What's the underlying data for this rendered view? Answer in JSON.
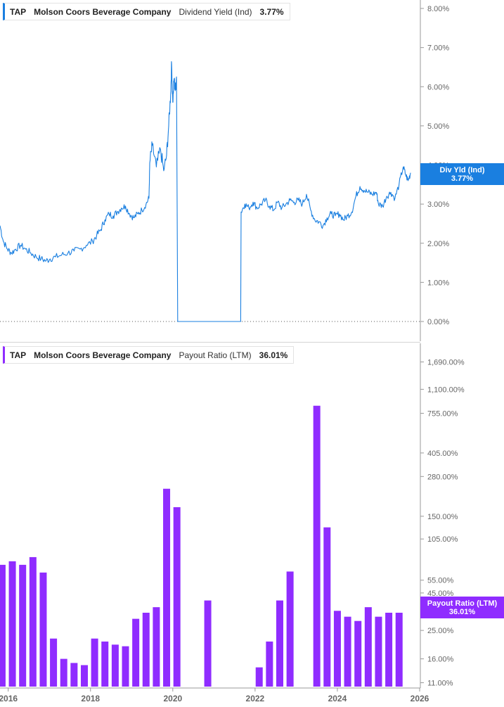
{
  "colors": {
    "yield": "#1a7fe0",
    "payout": "#8f2cff",
    "axis": "#999999",
    "label": "#666666"
  },
  "top_legend": {
    "ticker": "TAP",
    "company": "Molson Coors Beverage Company",
    "metric": "Dividend Yield (Ind)",
    "value": "3.77%"
  },
  "bottom_legend": {
    "ticker": "TAP",
    "company": "Molson Coors Beverage Company",
    "metric": "Payout Ratio (LTM)",
    "value": "36.01%"
  },
  "top_tag": {
    "label": "Div Yld (Ind)",
    "value": "3.77%"
  },
  "bottom_tag": {
    "label": "Payout Ratio (LTM)",
    "value": "36.01%"
  },
  "chart_data": [
    {
      "type": "line",
      "series": [
        {
          "name": "Dividend Yield (Ind)",
          "unit": "%",
          "points": [
            [
              2015.8,
              2.45
            ],
            [
              2015.88,
              2.05
            ],
            [
              2015.98,
              1.85
            ],
            [
              2016.08,
              1.75
            ],
            [
              2016.18,
              1.85
            ],
            [
              2016.3,
              1.95
            ],
            [
              2016.42,
              1.85
            ],
            [
              2016.55,
              1.75
            ],
            [
              2016.68,
              1.65
            ],
            [
              2016.8,
              1.6
            ],
            [
              2016.92,
              1.55
            ],
            [
              2017.02,
              1.6
            ],
            [
              2017.15,
              1.65
            ],
            [
              2017.3,
              1.7
            ],
            [
              2017.45,
              1.75
            ],
            [
              2017.6,
              1.8
            ],
            [
              2017.75,
              1.85
            ],
            [
              2017.9,
              1.95
            ],
            [
              2018.05,
              2.05
            ],
            [
              2018.15,
              2.2
            ],
            [
              2018.25,
              2.35
            ],
            [
              2018.35,
              2.6
            ],
            [
              2018.45,
              2.75
            ],
            [
              2018.55,
              2.7
            ],
            [
              2018.65,
              2.8
            ],
            [
              2018.75,
              2.9
            ],
            [
              2018.85,
              2.95
            ],
            [
              2018.95,
              2.75
            ],
            [
              2019.05,
              2.65
            ],
            [
              2019.15,
              2.75
            ],
            [
              2019.25,
              2.85
            ],
            [
              2019.35,
              3.0
            ],
            [
              2019.42,
              3.15
            ],
            [
              2019.44,
              4.05
            ],
            [
              2019.5,
              4.5
            ],
            [
              2019.6,
              3.95
            ],
            [
              2019.7,
              4.4
            ],
            [
              2019.78,
              3.85
            ],
            [
              2019.85,
              4.25
            ],
            [
              2019.9,
              5.0
            ],
            [
              2019.95,
              5.85
            ],
            [
              2019.97,
              6.6
            ],
            [
              2020.0,
              5.6
            ],
            [
              2020.03,
              6.2
            ],
            [
              2020.06,
              5.9
            ],
            [
              2020.09,
              6.25
            ],
            [
              2020.12,
              0.0
            ],
            [
              2021.65,
              0.0
            ],
            [
              2021.66,
              2.8
            ],
            [
              2021.75,
              3.0
            ],
            [
              2021.85,
              2.9
            ],
            [
              2021.95,
              3.05
            ],
            [
              2022.05,
              2.9
            ],
            [
              2022.15,
              3.0
            ],
            [
              2022.25,
              3.1
            ],
            [
              2022.35,
              2.95
            ],
            [
              2022.45,
              2.85
            ],
            [
              2022.55,
              3.05
            ],
            [
              2022.65,
              2.9
            ],
            [
              2022.75,
              3.0
            ],
            [
              2022.85,
              3.1
            ],
            [
              2022.95,
              3.05
            ],
            [
              2023.05,
              3.1
            ],
            [
              2023.15,
              3.0
            ],
            [
              2023.25,
              3.25
            ],
            [
              2023.35,
              2.85
            ],
            [
              2023.45,
              2.6
            ],
            [
              2023.55,
              2.55
            ],
            [
              2023.65,
              2.45
            ],
            [
              2023.75,
              2.65
            ],
            [
              2023.85,
              2.75
            ],
            [
              2023.95,
              2.7
            ],
            [
              2024.05,
              2.75
            ],
            [
              2024.15,
              2.6
            ],
            [
              2024.25,
              2.7
            ],
            [
              2024.35,
              2.8
            ],
            [
              2024.45,
              3.2
            ],
            [
              2024.55,
              3.45
            ],
            [
              2024.65,
              3.35
            ],
            [
              2024.75,
              3.3
            ],
            [
              2024.85,
              3.25
            ],
            [
              2024.95,
              3.3
            ],
            [
              2025.0,
              3.0
            ],
            [
              2025.1,
              2.95
            ],
            [
              2025.2,
              3.2
            ],
            [
              2025.3,
              3.3
            ],
            [
              2025.4,
              3.15
            ],
            [
              2025.5,
              3.5
            ],
            [
              2025.6,
              3.95
            ],
            [
              2025.66,
              3.75
            ],
            [
              2025.72,
              3.6
            ],
            [
              2025.78,
              3.8
            ]
          ]
        }
      ],
      "yticks": [
        "0.00%",
        "1.00%",
        "2.00%",
        "3.00%",
        "4.00%",
        "5.00%",
        "6.00%",
        "7.00%",
        "8.00%"
      ],
      "ylim": [
        0,
        8
      ],
      "xlim": [
        2015.8,
        2026
      ],
      "grid": false,
      "legend": "top-left"
    },
    {
      "type": "bar",
      "series": [
        {
          "name": "Payout Ratio (LTM)",
          "unit": "%",
          "points": [
            [
              2015.85,
              70
            ],
            [
              2016.1,
              74
            ],
            [
              2016.35,
              70
            ],
            [
              2016.6,
              79
            ],
            [
              2016.85,
              62
            ],
            [
              2017.1,
              22
            ],
            [
              2017.35,
              16
            ],
            [
              2017.6,
              15
            ],
            [
              2017.85,
              14.5
            ],
            [
              2018.1,
              22
            ],
            [
              2018.35,
              21
            ],
            [
              2018.6,
              20
            ],
            [
              2018.85,
              19.5
            ],
            [
              2019.1,
              30
            ],
            [
              2019.35,
              33
            ],
            [
              2019.6,
              36
            ],
            [
              2019.85,
              231
            ],
            [
              2020.1,
              173
            ],
            [
              2020.85,
              40
            ],
            [
              2022.1,
              14
            ],
            [
              2022.35,
              21
            ],
            [
              2022.6,
              40
            ],
            [
              2022.85,
              63
            ],
            [
              2023.5,
              850
            ],
            [
              2023.75,
              126
            ],
            [
              2024.0,
              34
            ],
            [
              2024.25,
              31
            ],
            [
              2024.5,
              29
            ],
            [
              2024.75,
              36
            ],
            [
              2025.0,
              31
            ],
            [
              2025.25,
              33
            ],
            [
              2025.5,
              33
            ]
          ]
        }
      ],
      "yticks": [
        "11.00%",
        "16.00%",
        "25.00%",
        "36.01%",
        "45.00%",
        "55.00%",
        "105.00%",
        "150.00%",
        "280.00%",
        "405.00%",
        "755.00%",
        "1,100.00%",
        "1,690.00%"
      ],
      "ylim": [
        10.5,
        1800
      ],
      "yscale": "log",
      "x_ticks": [
        "2016",
        "2018",
        "2020",
        "2022",
        "2024",
        "2026"
      ],
      "grid": false,
      "legend": "top-left"
    }
  ]
}
